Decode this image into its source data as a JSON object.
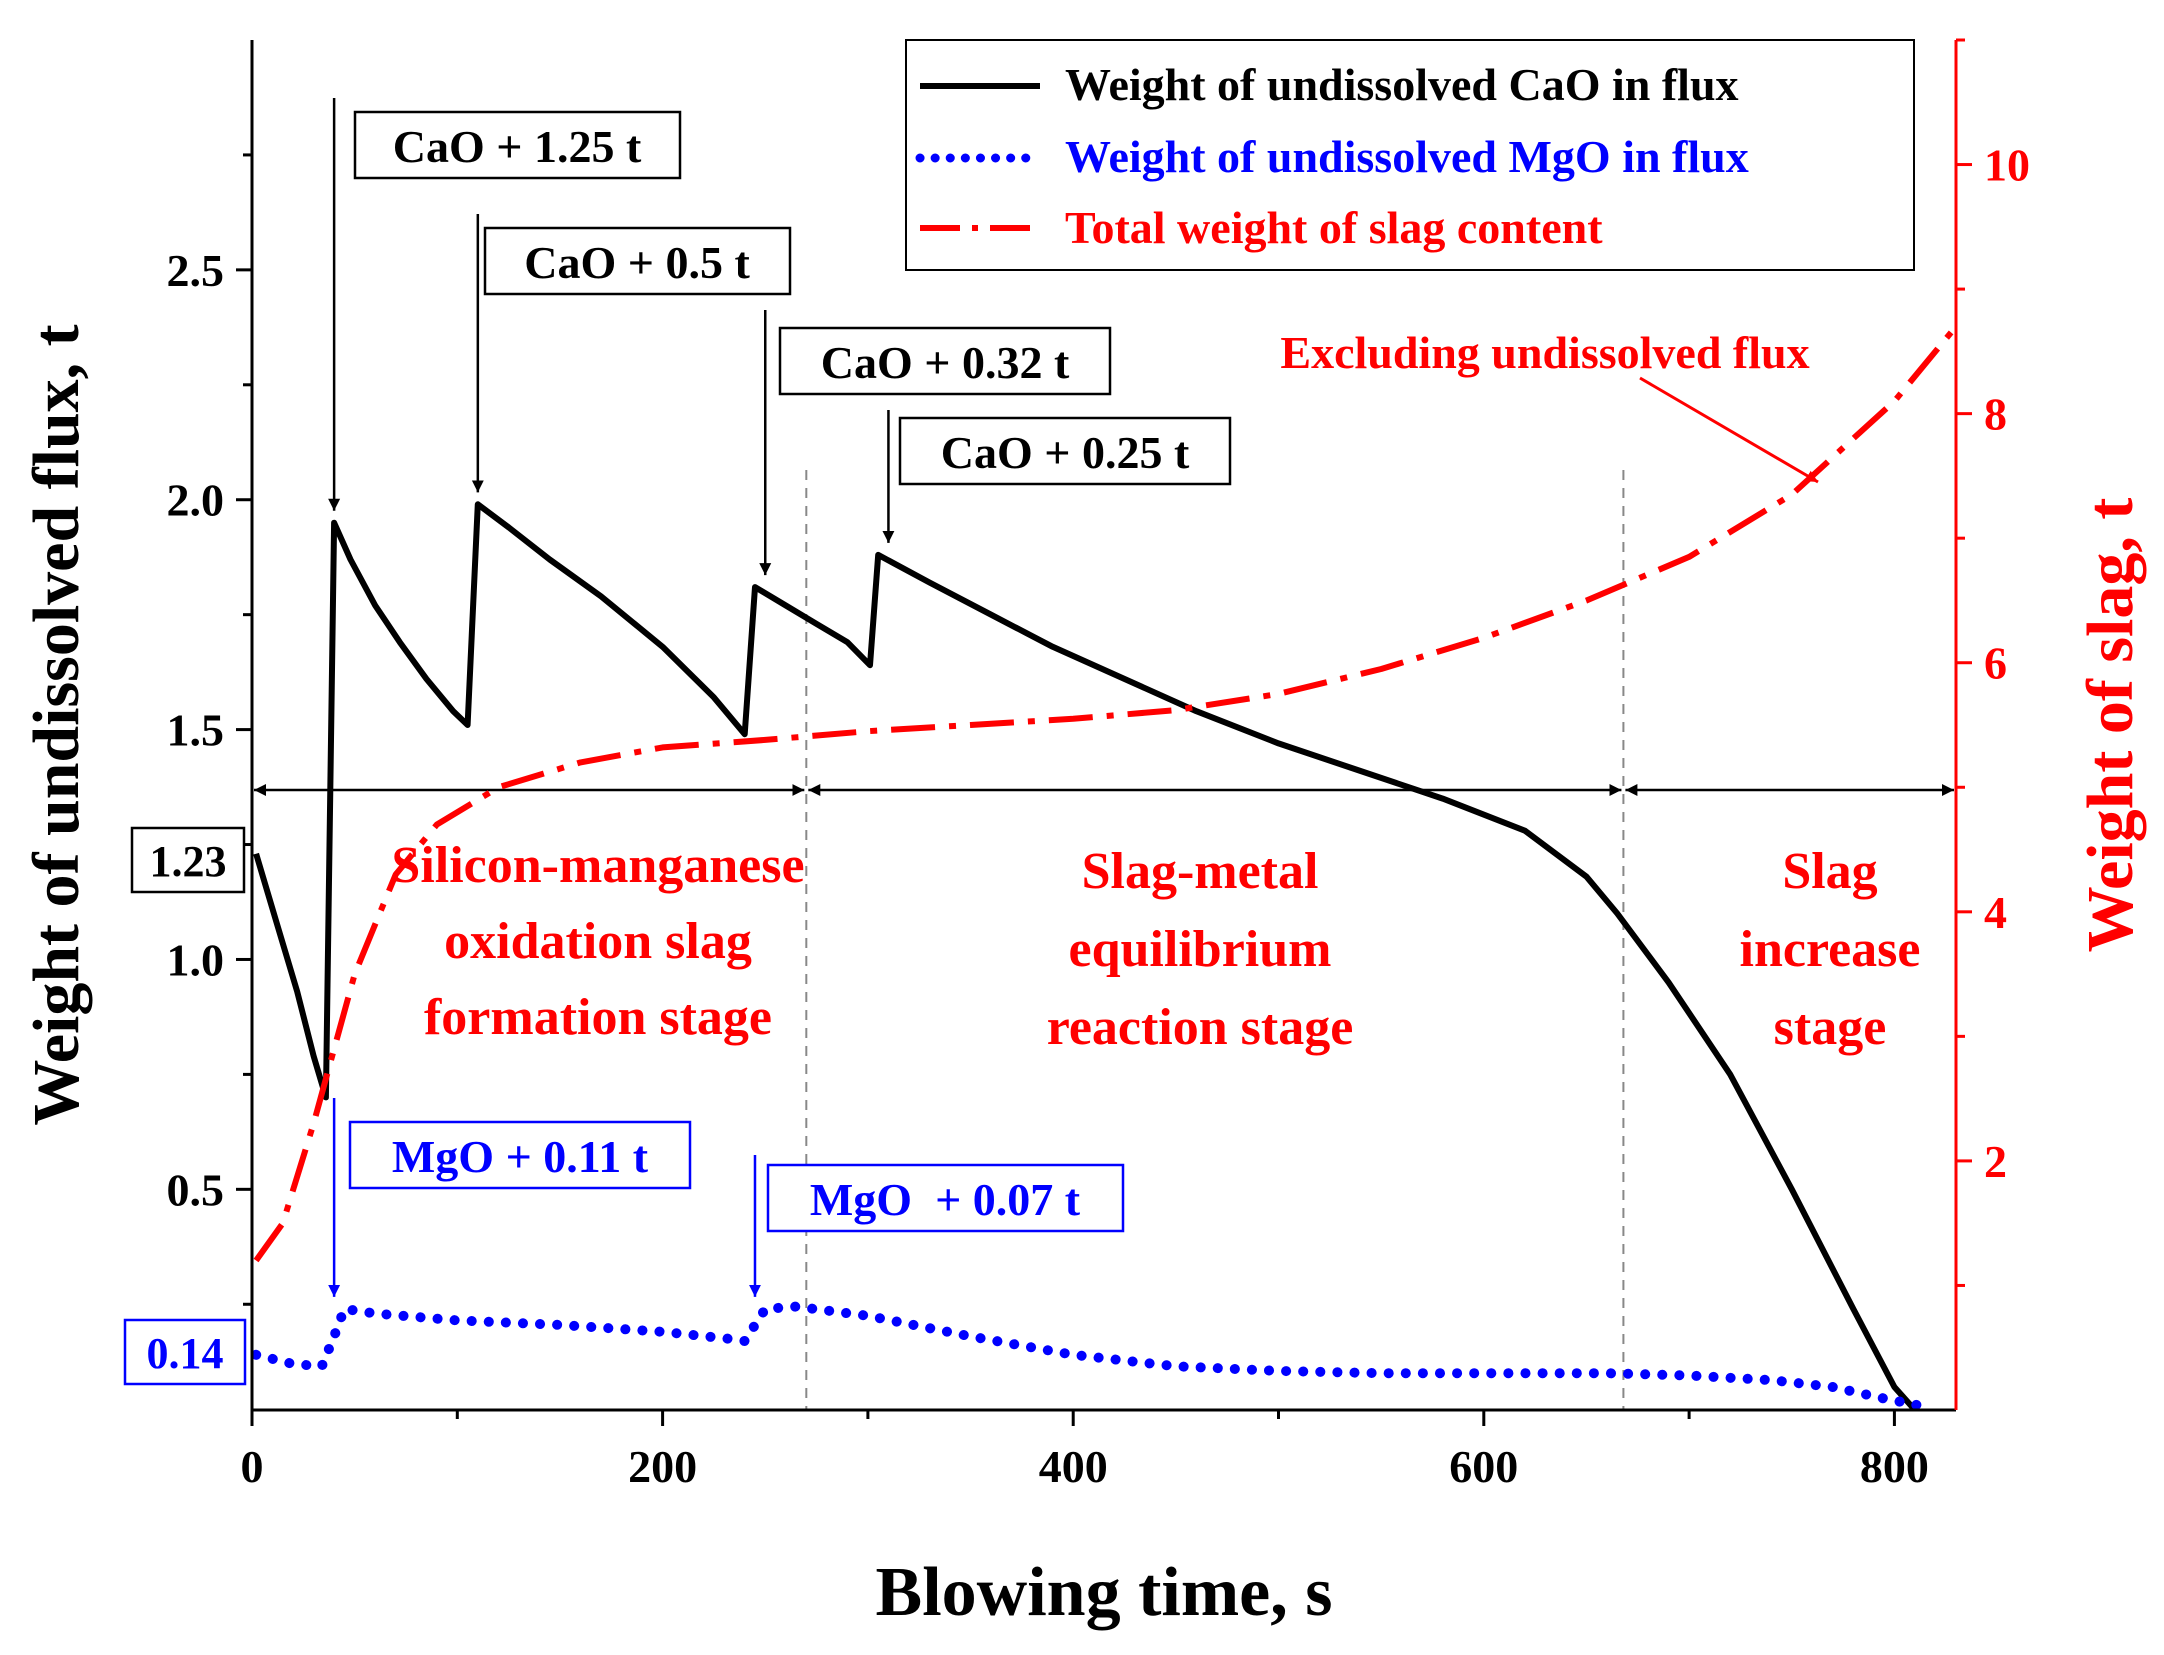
{
  "chart_data": {
    "type": "line",
    "x": {
      "label": "Blowing time, s",
      "range": [
        0,
        830
      ],
      "ticks": [
        0,
        200,
        400,
        600,
        800
      ],
      "tick_labels": [
        "0",
        "200",
        "400",
        "600",
        "800"
      ]
    },
    "y_left": {
      "label": "Weight of undissolved flux, t",
      "range": [
        0.02,
        3.0
      ],
      "ticks": [
        0.5,
        1.0,
        1.5,
        2.0,
        2.5
      ],
      "tick_labels": [
        "0.5",
        "1.0",
        "1.5",
        "2.0",
        "2.5"
      ]
    },
    "y_right": {
      "label": "Weight of slag, t",
      "range": [
        0.0,
        11.0
      ],
      "ticks": [
        2,
        4,
        6,
        8,
        10
      ],
      "tick_labels": [
        "2",
        "4",
        "6",
        "8",
        "10"
      ],
      "color": "#ff0000"
    },
    "series": [
      {
        "name": "Weight of undissolved CaO in flux",
        "axis": "left",
        "style": "solid",
        "color": "#000000",
        "points": [
          [
            2,
            1.23
          ],
          [
            12,
            1.08
          ],
          [
            22,
            0.93
          ],
          [
            30,
            0.79
          ],
          [
            36,
            0.7
          ],
          [
            40,
            1.95
          ],
          [
            48,
            1.87
          ],
          [
            60,
            1.77
          ],
          [
            72,
            1.69
          ],
          [
            85,
            1.61
          ],
          [
            98,
            1.54
          ],
          [
            105,
            1.51
          ],
          [
            110,
            1.99
          ],
          [
            125,
            1.94
          ],
          [
            145,
            1.87
          ],
          [
            170,
            1.79
          ],
          [
            200,
            1.68
          ],
          [
            225,
            1.57
          ],
          [
            240,
            1.49
          ],
          [
            245,
            1.81
          ],
          [
            260,
            1.77
          ],
          [
            275,
            1.73
          ],
          [
            290,
            1.69
          ],
          [
            301,
            1.64
          ],
          [
            305,
            1.88
          ],
          [
            330,
            1.82
          ],
          [
            360,
            1.75
          ],
          [
            390,
            1.68
          ],
          [
            420,
            1.62
          ],
          [
            460,
            1.54
          ],
          [
            500,
            1.47
          ],
          [
            540,
            1.41
          ],
          [
            580,
            1.35
          ],
          [
            620,
            1.28
          ],
          [
            650,
            1.18
          ],
          [
            665,
            1.1
          ],
          [
            690,
            0.95
          ],
          [
            720,
            0.75
          ],
          [
            750,
            0.5
          ],
          [
            780,
            0.24
          ],
          [
            800,
            0.07
          ],
          [
            810,
            0.02
          ]
        ]
      },
      {
        "name": "Weight of undissolved MgO in flux",
        "axis": "left",
        "style": "dotted",
        "color": "#0000ff",
        "points": [
          [
            2,
            0.14
          ],
          [
            20,
            0.12
          ],
          [
            34,
            0.115
          ],
          [
            40,
            0.18
          ],
          [
            45,
            0.24
          ],
          [
            60,
            0.23
          ],
          [
            100,
            0.215
          ],
          [
            150,
            0.205
          ],
          [
            200,
            0.19
          ],
          [
            232,
            0.175
          ],
          [
            240,
            0.17
          ],
          [
            250,
            0.24
          ],
          [
            265,
            0.245
          ],
          [
            300,
            0.225
          ],
          [
            350,
            0.18
          ],
          [
            400,
            0.14
          ],
          [
            450,
            0.115
          ],
          [
            500,
            0.105
          ],
          [
            550,
            0.1
          ],
          [
            600,
            0.1
          ],
          [
            660,
            0.1
          ],
          [
            700,
            0.095
          ],
          [
            740,
            0.085
          ],
          [
            770,
            0.07
          ],
          [
            795,
            0.045
          ],
          [
            812,
            0.03
          ]
        ]
      },
      {
        "name": "Total weight of slag content",
        "axis": "right",
        "style": "dashdot",
        "color": "#ff0000",
        "points": [
          [
            2,
            1.2
          ],
          [
            15,
            1.5
          ],
          [
            30,
            2.3
          ],
          [
            50,
            3.5
          ],
          [
            70,
            4.3
          ],
          [
            90,
            4.7
          ],
          [
            120,
            5.0
          ],
          [
            160,
            5.2
          ],
          [
            200,
            5.32
          ],
          [
            250,
            5.38
          ],
          [
            300,
            5.45
          ],
          [
            350,
            5.5
          ],
          [
            400,
            5.55
          ],
          [
            450,
            5.62
          ],
          [
            500,
            5.75
          ],
          [
            550,
            5.95
          ],
          [
            600,
            6.2
          ],
          [
            650,
            6.5
          ],
          [
            700,
            6.85
          ],
          [
            750,
            7.35
          ],
          [
            780,
            7.8
          ],
          [
            800,
            8.1
          ],
          [
            830,
            8.7
          ]
        ]
      }
    ],
    "legend": [
      "Weight of undissolved CaO in flux",
      "Weight of undissolved MgO in flux",
      "Total weight of slag content"
    ],
    "stage_boundaries": [
      270,
      668
    ],
    "stages": [
      {
        "lines": [
          "Silicon-manganese",
          "oxidation slag",
          "formation stage"
        ],
        "x_center": 135
      },
      {
        "lines": [
          "Slag-metal",
          "equilibrium",
          "reaction stage"
        ],
        "x_center": 465
      },
      {
        "lines": [
          "Slag",
          "increase",
          "stage"
        ],
        "x_center": 772
      }
    ],
    "annotations": {
      "cao_additions": [
        {
          "label": "CaO + 1.25 t",
          "x": 40
        },
        {
          "label": "CaO + 0.5 t",
          "x": 110
        },
        {
          "label": "CaO + 0.32 t",
          "x": 250
        },
        {
          "label": "CaO + 0.25 t",
          "x": 310
        }
      ],
      "mgo_additions": [
        {
          "label": "MgO + 0.11 t",
          "x": 40
        },
        {
          "label": "MgO  + 0.07 t",
          "x": 245
        }
      ],
      "initial_values": {
        "cao": "1.23",
        "mgo": "0.14"
      },
      "excluding_note": "Excluding undissolved flux"
    }
  }
}
